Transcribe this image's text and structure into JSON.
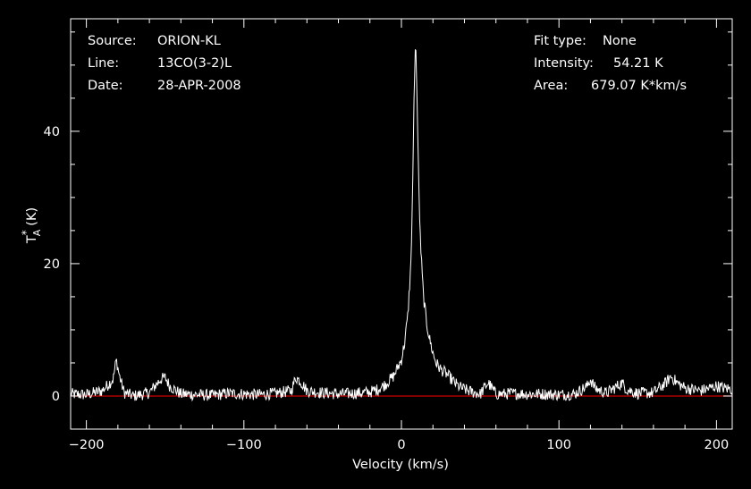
{
  "header": {
    "source_label": "Source:",
    "source_value": "ORION-KL",
    "line_label": "Line:",
    "line_value": "13CO(3-2)L",
    "date_label": "Date:",
    "date_value": "28-APR-2008",
    "fit_label": "Fit type:",
    "fit_value": "None",
    "intensity_label": "Intensity:",
    "intensity_value": "54.21 K",
    "area_label": "Area:",
    "area_value": "679.07 K*km/s"
  },
  "chart_data": {
    "type": "line",
    "xlabel": "Velocity (km/s)",
    "ylabel_main": "T",
    "ylabel_sup": "*",
    "ylabel_sub": "A",
    "ylabel_unit": "(K)",
    "xlim": [
      -210,
      210
    ],
    "ylim": [
      -5,
      57
    ],
    "x_ticks": [
      -200,
      -100,
      0,
      100,
      200
    ],
    "x_tick_labels": [
      "−200",
      "−100",
      "0",
      "100",
      "200"
    ],
    "y_ticks": [
      0,
      20,
      40
    ],
    "y_tick_labels": [
      "0",
      "20",
      "40"
    ],
    "baseline": 0,
    "grid": false,
    "colors": {
      "background": "#000000",
      "spectrum": "#ffffff",
      "baseline": "#cc0000",
      "axes": "#ffffff"
    },
    "series": [
      {
        "x": [
          -210,
          -200,
          -190,
          -183,
          -181,
          -179,
          -176,
          -170,
          -160,
          -153,
          -150,
          -147,
          -140,
          -130,
          -120,
          -110,
          -100,
          -90,
          -80,
          -70,
          -67,
          -64,
          -60,
          -50,
          -40,
          -30,
          -20,
          -15,
          -10,
          -5,
          -2,
          0,
          2,
          4,
          6,
          7,
          8,
          9,
          10,
          11,
          12,
          13,
          14,
          16,
          18,
          20,
          22,
          25,
          28,
          30,
          33,
          36,
          40,
          45,
          50,
          55,
          58,
          60,
          65,
          70,
          80,
          90,
          100,
          110,
          118,
          120,
          123,
          130,
          137,
          140,
          143,
          150,
          160,
          168,
          171,
          175,
          180,
          190,
          200,
          205,
          210
        ],
        "y": [
          0.3,
          0.2,
          0.8,
          2.5,
          5.5,
          3.0,
          0.5,
          0.0,
          0.5,
          2.5,
          2.8,
          1.5,
          0.3,
          0.2,
          0.1,
          0.4,
          0.3,
          0.2,
          0.4,
          0.8,
          2.8,
          2.2,
          0.8,
          0.5,
          0.3,
          0.4,
          0.6,
          1.0,
          1.8,
          3.0,
          4.5,
          5.5,
          8.0,
          12.0,
          20.0,
          30.0,
          45.0,
          54.21,
          44.0,
          32.0,
          24.0,
          19.0,
          15.0,
          11.0,
          8.5,
          6.5,
          5.0,
          4.0,
          3.5,
          3.0,
          2.2,
          1.5,
          1.0,
          0.6,
          0.3,
          2.0,
          1.0,
          0.3,
          0.3,
          0.4,
          0.3,
          0.3,
          0.2,
          0.3,
          1.5,
          2.5,
          1.2,
          0.4,
          1.5,
          2.0,
          1.0,
          0.4,
          0.5,
          2.0,
          3.0,
          2.0,
          1.2,
          0.8,
          1.5,
          1.2,
          1.0
        ]
      }
    ]
  }
}
